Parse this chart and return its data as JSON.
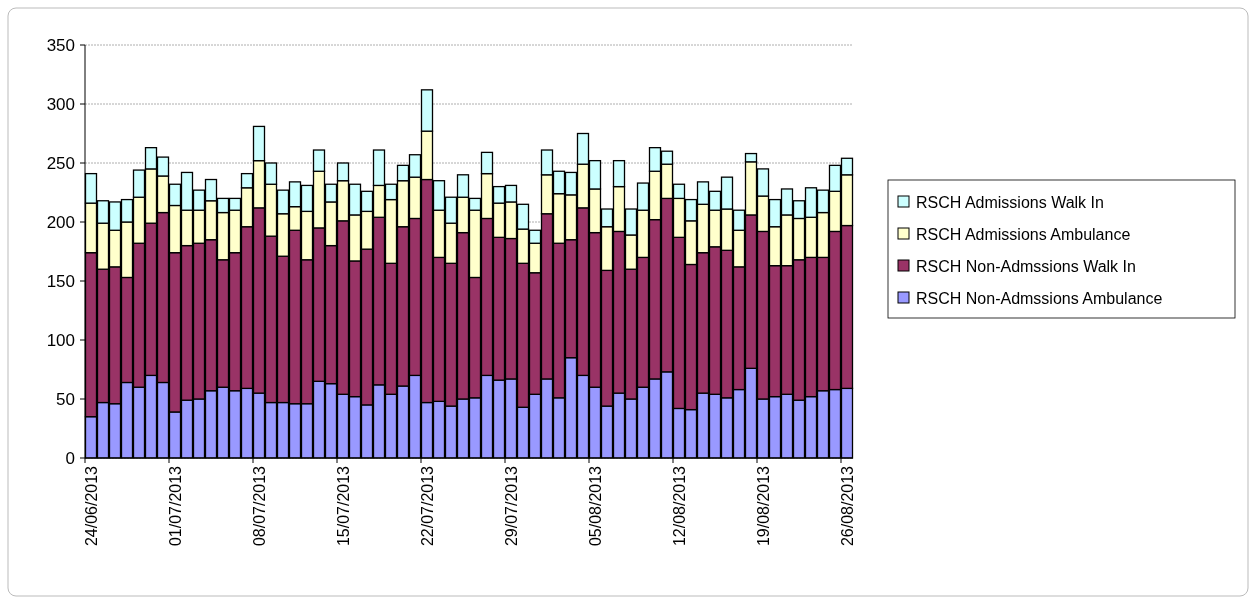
{
  "chart_data": {
    "type": "bar",
    "stacked": true,
    "grid": "y",
    "legend": "right",
    "categories": [
      "24/06/2013",
      null,
      null,
      null,
      null,
      null,
      null,
      "01/07/2013",
      null,
      null,
      null,
      null,
      null,
      null,
      "08/07/2013",
      null,
      null,
      null,
      null,
      null,
      null,
      "15/07/2013",
      null,
      null,
      null,
      null,
      null,
      null,
      "22/07/2013",
      null,
      null,
      null,
      null,
      null,
      null,
      "29/07/2013",
      null,
      null,
      null,
      null,
      null,
      null,
      "05/08/2013",
      null,
      null,
      null,
      null,
      null,
      null,
      "12/08/2013",
      null,
      null,
      null,
      null,
      null,
      null,
      "19/08/2013",
      null,
      null,
      null,
      null,
      null,
      null,
      "26/08/2013"
    ],
    "ylim": [
      0,
      350
    ],
    "yticks": [
      0,
      50,
      100,
      150,
      200,
      250,
      300,
      350
    ],
    "series": [
      {
        "name": "RSCH Non-Admssions Ambulance",
        "color": "#9999ff",
        "values": [
          35,
          47,
          46,
          64,
          60,
          70,
          64,
          39,
          49,
          50,
          57,
          60,
          57,
          59,
          55,
          47,
          47,
          46,
          46,
          65,
          63,
          54,
          52,
          45,
          62,
          54,
          61,
          70,
          47,
          48,
          44,
          50,
          51,
          70,
          66,
          67,
          43,
          54,
          67,
          51,
          85,
          70,
          60,
          44,
          55,
          50,
          60,
          67,
          73,
          42,
          41,
          55,
          54,
          51,
          58,
          76,
          50,
          52,
          54,
          49,
          52,
          57,
          58,
          59
        ]
      },
      {
        "name": "RSCH Non-Admssions Walk In",
        "color": "#993366",
        "values": [
          139,
          113,
          116,
          89,
          122,
          129,
          144,
          135,
          131,
          132,
          128,
          108,
          117,
          137,
          157,
          141,
          124,
          147,
          122,
          130,
          117,
          147,
          115,
          132,
          142,
          111,
          135,
          133,
          189,
          122,
          121,
          141,
          102,
          133,
          121,
          119,
          122,
          103,
          140,
          131,
          100,
          142,
          131,
          115,
          137,
          110,
          110,
          135,
          147,
          145,
          123,
          119,
          125,
          125,
          104,
          130,
          142,
          111,
          109,
          119,
          118,
          113,
          134,
          138
        ]
      },
      {
        "name": "RSCH Admissions Ambulance",
        "color": "#ffffcc",
        "values": [
          42,
          39,
          31,
          47,
          39,
          46,
          31,
          40,
          30,
          28,
          33,
          40,
          36,
          33,
          40,
          44,
          36,
          20,
          41,
          48,
          37,
          34,
          39,
          32,
          27,
          54,
          39,
          35,
          41,
          40,
          34,
          30,
          57,
          38,
          29,
          31,
          29,
          25,
          33,
          42,
          38,
          37,
          37,
          37,
          38,
          29,
          40,
          41,
          29,
          33,
          37,
          41,
          31,
          35,
          31,
          45,
          30,
          33,
          43,
          35,
          34,
          38,
          34,
          43
        ]
      },
      {
        "name": "RSCH Admissions Walk In",
        "color": "#ccffff",
        "values": [
          25,
          19,
          24,
          19,
          23,
          18,
          16,
          18,
          32,
          17,
          18,
          12,
          10,
          12,
          29,
          18,
          20,
          21,
          22,
          18,
          15,
          15,
          26,
          17,
          30,
          13,
          13,
          19,
          35,
          25,
          22,
          19,
          10,
          18,
          14,
          14,
          21,
          11,
          21,
          19,
          19,
          26,
          24,
          15,
          22,
          22,
          23,
          20,
          11,
          12,
          18,
          19,
          16,
          27,
          17,
          7,
          23,
          23,
          22,
          15,
          25,
          19,
          22,
          14
        ]
      }
    ]
  }
}
